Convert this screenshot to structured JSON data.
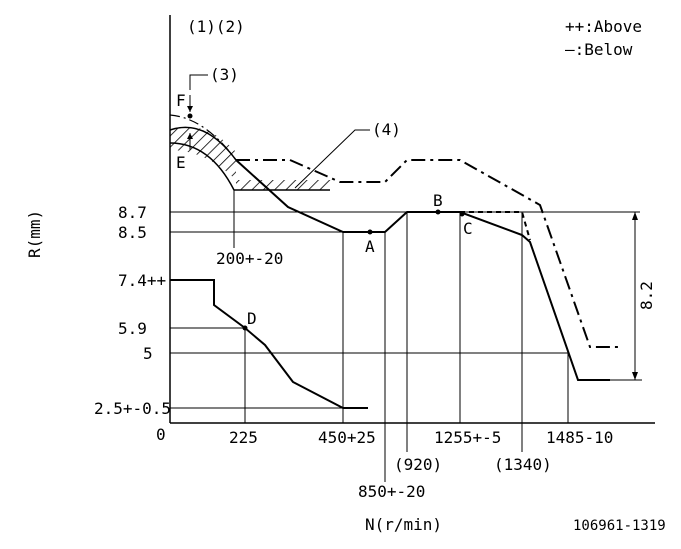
{
  "header": {
    "top_labels": "(1)(2)",
    "legend_above": "++:Above",
    "legend_below": "—:Below"
  },
  "axes": {
    "ylabel": "R(mm)",
    "xlabel": "N(r/min)",
    "origin": "0",
    "y_ticks": [
      "8.7",
      "8.5",
      "7.4++",
      "5.9",
      "5",
      "2.5+-0.5"
    ],
    "x_ticks_top": [
      "225",
      "450+25",
      "1255+-5",
      "1485-10"
    ],
    "x_ticks_bottom": [
      "(920)",
      "(1340)",
      "850+-20"
    ]
  },
  "callouts": {
    "c3": "(3)",
    "c4": "(4)",
    "F": "F",
    "E": "E",
    "A": "A",
    "B": "B",
    "C": "C",
    "D": "D",
    "dim_200": "200+-20",
    "dim_82": "8.2"
  },
  "footer": {
    "code": "106961-1319"
  },
  "colors": {
    "line": "#000000",
    "background": "#ffffff"
  }
}
